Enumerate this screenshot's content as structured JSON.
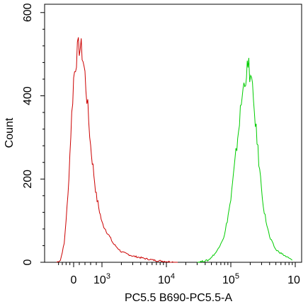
{
  "chart_data": {
    "type": "line",
    "title": "",
    "xlabel": "PC5.5 B690-PC5.5-A",
    "ylabel": "Count",
    "xscale": "biexponential",
    "ylim": [
      0,
      620
    ],
    "x_ticks": [
      {
        "base": "",
        "exp": "",
        "label": "0",
        "value": 0
      },
      {
        "base": "10",
        "exp": "3",
        "label": "10³",
        "value": 1000
      },
      {
        "base": "10",
        "exp": "4",
        "label": "10⁴",
        "value": 10000
      },
      {
        "base": "10",
        "exp": "5",
        "label": "10⁵",
        "value": 100000
      },
      {
        "base": "10",
        "exp": "",
        "label": "10",
        "value": 1000000
      }
    ],
    "y_ticks": [
      {
        "label": "0",
        "value": 0
      },
      {
        "label": "200",
        "value": 200
      },
      {
        "label": "400",
        "value": 400
      },
      {
        "label": "600",
        "value": 600
      }
    ],
    "grid": false,
    "legend": "none",
    "series": [
      {
        "color": "#cc0000",
        "x": [
          -900,
          -700,
          -500,
          -300,
          -150,
          0,
          100,
          200,
          300,
          400,
          500,
          600,
          800,
          1000,
          1500,
          2000,
          3000,
          5000,
          7000,
          10000,
          15000
        ],
        "y": [
          0,
          5,
          45,
          160,
          310,
          440,
          495,
          520,
          505,
          450,
          370,
          280,
          160,
          95,
          45,
          25,
          15,
          8,
          4,
          2,
          0
        ]
      },
      {
        "color": "#00cc00",
        "x": [
          30000,
          45000,
          60000,
          80000,
          100000,
          120000,
          150000,
          170000,
          190000,
          210000,
          240000,
          280000,
          330000,
          400000,
          500000,
          700000,
          900000
        ],
        "y": [
          0,
          5,
          25,
          65,
          150,
          260,
          400,
          450,
          470,
          430,
          340,
          220,
          120,
          60,
          30,
          15,
          5
        ]
      }
    ]
  }
}
